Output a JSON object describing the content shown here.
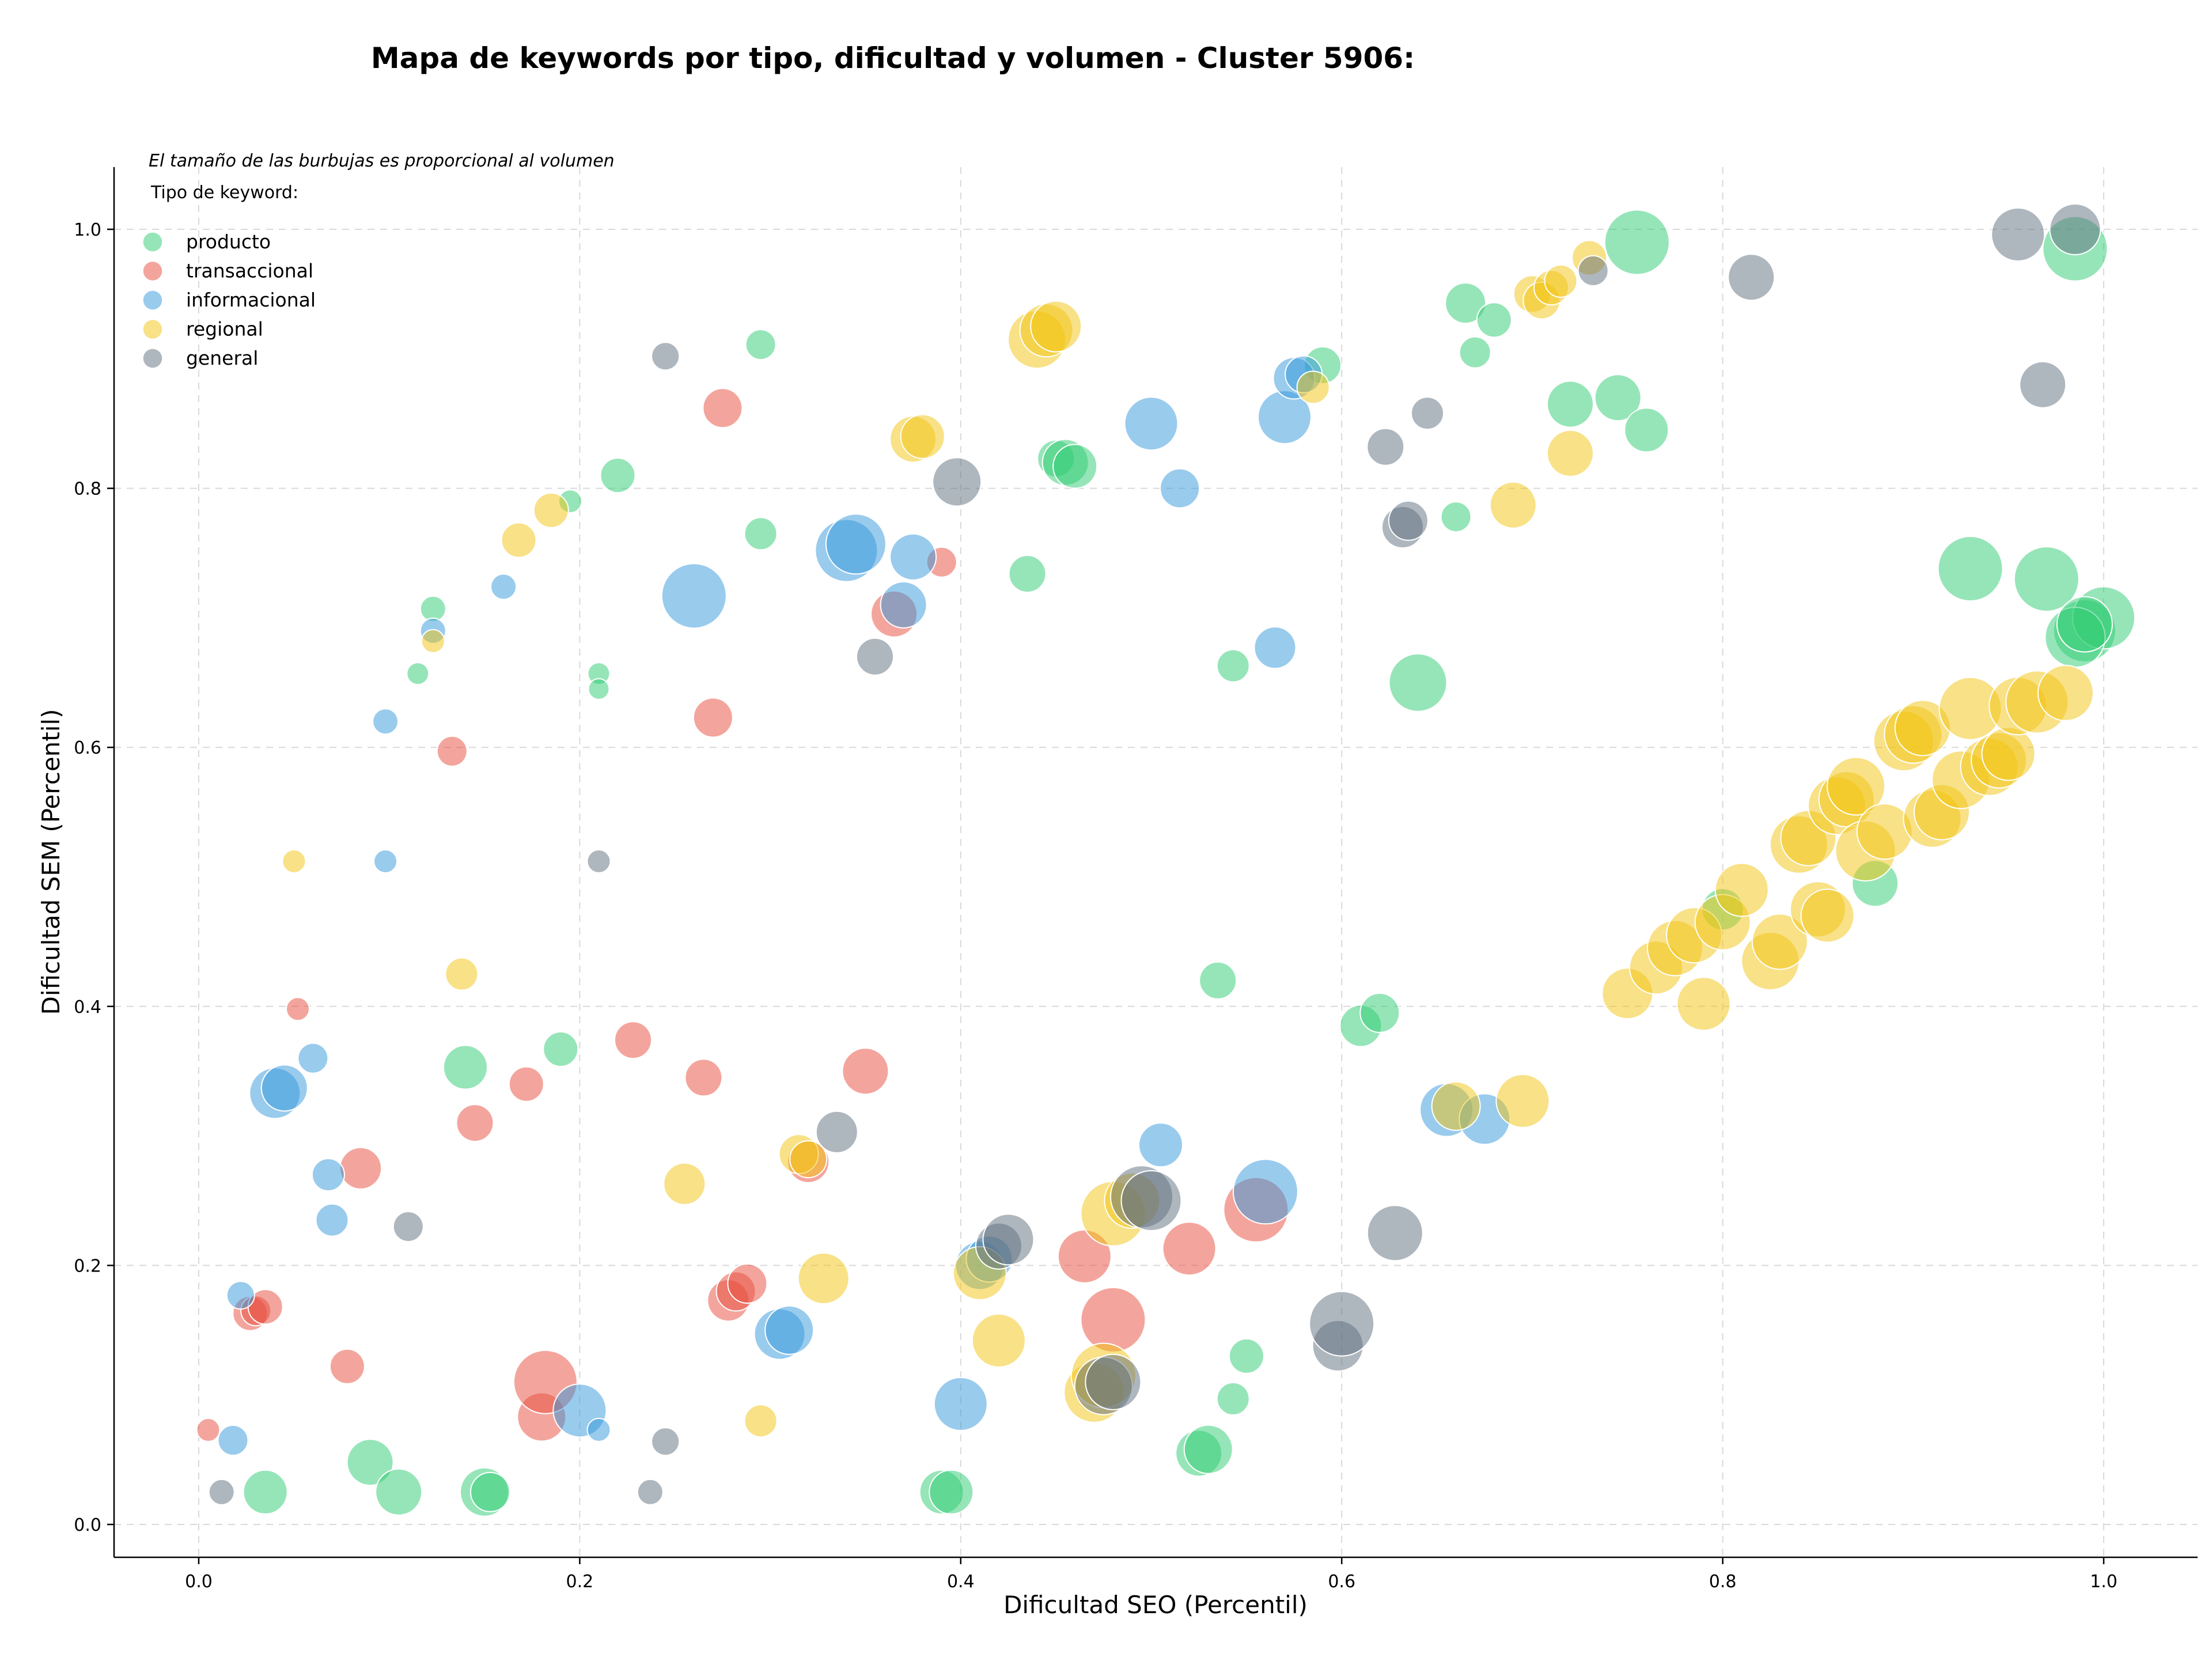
{
  "chart_data": {
    "type": "scatter",
    "title": "Mapa de keywords por tipo, dificultad y volumen - Cluster 5906:",
    "xlabel": "Dificultad SEO (Percentil)",
    "ylabel": "Dificultad SEM (Percentil)",
    "xlim": [
      -0.045,
      1.05
    ],
    "ylim": [
      -0.025,
      1.05
    ],
    "xticks": [
      "0.0",
      "0.2",
      "0.4",
      "0.6",
      "0.8",
      "1.0"
    ],
    "yticks": [
      "0.0",
      "0.2",
      "0.4",
      "0.6",
      "0.8",
      "1.0"
    ],
    "grid": true,
    "legend": {
      "placement": "top-left",
      "note": "El tamaño de las burbujas es proporcional al volumen",
      "title": "Tipo de keyword:"
    },
    "series": [
      {
        "name": "producto",
        "color": "#2ecc71",
        "points": [
          [
            0.035,
            0.025,
            38
          ],
          [
            0.09,
            0.048,
            40
          ],
          [
            0.105,
            0.025,
            40
          ],
          [
            0.15,
            0.025,
            42
          ],
          [
            0.153,
            0.025,
            34
          ],
          [
            0.14,
            0.353,
            38
          ],
          [
            0.19,
            0.367,
            30
          ],
          [
            0.123,
            0.707,
            22
          ],
          [
            0.115,
            0.657,
            19
          ],
          [
            0.21,
            0.657,
            19
          ],
          [
            0.21,
            0.645,
            18
          ],
          [
            0.195,
            0.79,
            20
          ],
          [
            0.22,
            0.81,
            30
          ],
          [
            0.295,
            0.765,
            28
          ],
          [
            0.295,
            0.911,
            26
          ],
          [
            0.39,
            0.025,
            38
          ],
          [
            0.395,
            0.025,
            38
          ],
          [
            0.435,
            0.734,
            32
          ],
          [
            0.45,
            0.823,
            32
          ],
          [
            0.455,
            0.82,
            40
          ],
          [
            0.46,
            0.817,
            38
          ],
          [
            0.525,
            0.055,
            40
          ],
          [
            0.53,
            0.058,
            42
          ],
          [
            0.543,
            0.097,
            28
          ],
          [
            0.55,
            0.13,
            30
          ],
          [
            0.535,
            0.42,
            32
          ],
          [
            0.543,
            0.663,
            28
          ],
          [
            0.61,
            0.385,
            36
          ],
          [
            0.62,
            0.395,
            34
          ],
          [
            0.64,
            0.65,
            50
          ],
          [
            0.66,
            0.778,
            26
          ],
          [
            0.665,
            0.943,
            35
          ],
          [
            0.67,
            0.905,
            27
          ],
          [
            0.68,
            0.93,
            30
          ],
          [
            0.72,
            0.865,
            40
          ],
          [
            0.745,
            0.87,
            40
          ],
          [
            0.76,
            0.845,
            38
          ],
          [
            0.755,
            0.99,
            56
          ],
          [
            0.59,
            0.895,
            32
          ],
          [
            0.8,
            0.475,
            36
          ],
          [
            0.88,
            0.495,
            40
          ],
          [
            0.93,
            0.738,
            56
          ],
          [
            0.97,
            0.73,
            56
          ],
          [
            0.985,
            0.985,
            56
          ],
          [
            0.99,
            0.69,
            54
          ],
          [
            1.0,
            0.7,
            54
          ],
          [
            0.985,
            0.685,
            52
          ],
          [
            0.99,
            0.695,
            48
          ]
        ]
      },
      {
        "name": "transaccional",
        "color": "#e74c3c",
        "points": [
          [
            0.005,
            0.073,
            20
          ],
          [
            0.027,
            0.163,
            30
          ],
          [
            0.03,
            0.165,
            26
          ],
          [
            0.035,
            0.168,
            30
          ],
          [
            0.052,
            0.398,
            20
          ],
          [
            0.078,
            0.122,
            30
          ],
          [
            0.085,
            0.275,
            36
          ],
          [
            0.133,
            0.597,
            26
          ],
          [
            0.145,
            0.31,
            32
          ],
          [
            0.172,
            0.34,
            30
          ],
          [
            0.18,
            0.083,
            42
          ],
          [
            0.182,
            0.11,
            55
          ],
          [
            0.228,
            0.374,
            32
          ],
          [
            0.265,
            0.345,
            32
          ],
          [
            0.27,
            0.623,
            34
          ],
          [
            0.275,
            0.862,
            34
          ],
          [
            0.278,
            0.173,
            36
          ],
          [
            0.282,
            0.18,
            34
          ],
          [
            0.288,
            0.186,
            34
          ],
          [
            0.35,
            0.35,
            40
          ],
          [
            0.32,
            0.28,
            36
          ],
          [
            0.365,
            0.703,
            40
          ],
          [
            0.39,
            0.743,
            26
          ],
          [
            0.465,
            0.207,
            46
          ],
          [
            0.48,
            0.158,
            56
          ],
          [
            0.52,
            0.213,
            46
          ],
          [
            0.555,
            0.243,
            56
          ]
        ]
      },
      {
        "name": "informacional",
        "color": "#3498db",
        "points": [
          [
            0.018,
            0.065,
            26
          ],
          [
            0.022,
            0.177,
            24
          ],
          [
            0.04,
            0.333,
            44
          ],
          [
            0.045,
            0.337,
            40
          ],
          [
            0.06,
            0.36,
            26
          ],
          [
            0.068,
            0.27,
            28
          ],
          [
            0.07,
            0.235,
            28
          ],
          [
            0.098,
            0.62,
            22
          ],
          [
            0.098,
            0.512,
            20
          ],
          [
            0.123,
            0.69,
            22
          ],
          [
            0.16,
            0.724,
            22
          ],
          [
            0.2,
            0.088,
            46
          ],
          [
            0.21,
            0.073,
            20
          ],
          [
            0.26,
            0.717,
            56
          ],
          [
            0.305,
            0.147,
            44
          ],
          [
            0.31,
            0.15,
            42
          ],
          [
            0.34,
            0.752,
            54
          ],
          [
            0.345,
            0.757,
            52
          ],
          [
            0.37,
            0.71,
            40
          ],
          [
            0.375,
            0.747,
            40
          ],
          [
            0.4,
            0.093,
            46
          ],
          [
            0.41,
            0.2,
            42
          ],
          [
            0.415,
            0.205,
            40
          ],
          [
            0.5,
            0.85,
            46
          ],
          [
            0.505,
            0.293,
            38
          ],
          [
            0.515,
            0.8,
            34
          ],
          [
            0.565,
            0.677,
            36
          ],
          [
            0.56,
            0.257,
            56
          ],
          [
            0.57,
            0.855,
            46
          ],
          [
            0.575,
            0.885,
            36
          ],
          [
            0.58,
            0.888,
            32
          ],
          [
            0.655,
            0.32,
            46
          ],
          [
            0.675,
            0.313,
            44
          ]
        ]
      },
      {
        "name": "regional",
        "color": "#f1c40f",
        "points": [
          [
            0.05,
            0.512,
            20
          ],
          [
            0.123,
            0.682,
            20
          ],
          [
            0.138,
            0.425,
            28
          ],
          [
            0.168,
            0.76,
            30
          ],
          [
            0.185,
            0.783,
            30
          ],
          [
            0.255,
            0.263,
            36
          ],
          [
            0.295,
            0.08,
            28
          ],
          [
            0.315,
            0.286,
            34
          ],
          [
            0.32,
            0.282,
            32
          ],
          [
            0.328,
            0.19,
            44
          ],
          [
            0.375,
            0.838,
            40
          ],
          [
            0.38,
            0.84,
            38
          ],
          [
            0.41,
            0.194,
            46
          ],
          [
            0.42,
            0.142,
            46
          ],
          [
            0.44,
            0.915,
            50
          ],
          [
            0.445,
            0.922,
            46
          ],
          [
            0.45,
            0.925,
            44
          ],
          [
            0.47,
            0.102,
            52
          ],
          [
            0.475,
            0.115,
            56
          ],
          [
            0.48,
            0.24,
            56
          ],
          [
            0.49,
            0.25,
            48
          ],
          [
            0.585,
            0.878,
            28
          ],
          [
            0.66,
            0.323,
            42
          ],
          [
            0.695,
            0.327,
            46
          ],
          [
            0.69,
            0.787,
            40
          ],
          [
            0.72,
            0.827,
            40
          ],
          [
            0.7,
            0.95,
            32
          ],
          [
            0.705,
            0.945,
            32
          ],
          [
            0.71,
            0.955,
            30
          ],
          [
            0.715,
            0.96,
            28
          ],
          [
            0.73,
            0.978,
            30
          ],
          [
            0.75,
            0.41,
            44
          ],
          [
            0.765,
            0.43,
            46
          ],
          [
            0.775,
            0.445,
            48
          ],
          [
            0.785,
            0.455,
            48
          ],
          [
            0.79,
            0.402,
            46
          ],
          [
            0.8,
            0.465,
            48
          ],
          [
            0.81,
            0.49,
            46
          ],
          [
            0.825,
            0.435,
            50
          ],
          [
            0.83,
            0.45,
            48
          ],
          [
            0.84,
            0.525,
            50
          ],
          [
            0.845,
            0.53,
            48
          ],
          [
            0.85,
            0.475,
            48
          ],
          [
            0.855,
            0.47,
            46
          ],
          [
            0.86,
            0.555,
            50
          ],
          [
            0.865,
            0.56,
            48
          ],
          [
            0.87,
            0.57,
            50
          ],
          [
            0.875,
            0.52,
            52
          ],
          [
            0.885,
            0.535,
            48
          ],
          [
            0.895,
            0.605,
            52
          ],
          [
            0.9,
            0.61,
            50
          ],
          [
            0.905,
            0.615,
            48
          ],
          [
            0.91,
            0.545,
            50
          ],
          [
            0.915,
            0.55,
            48
          ],
          [
            0.925,
            0.575,
            50
          ],
          [
            0.93,
            0.63,
            54
          ],
          [
            0.94,
            0.585,
            50
          ],
          [
            0.945,
            0.59,
            48
          ],
          [
            0.95,
            0.595,
            46
          ],
          [
            0.955,
            0.632,
            50
          ],
          [
            0.965,
            0.635,
            54
          ],
          [
            0.98,
            0.642,
            48
          ]
        ]
      },
      {
        "name": "general",
        "color": "#5d6d7e",
        "points": [
          [
            0.012,
            0.025,
            22
          ],
          [
            0.11,
            0.23,
            26
          ],
          [
            0.21,
            0.512,
            20
          ],
          [
            0.245,
            0.902,
            24
          ],
          [
            0.245,
            0.064,
            24
          ],
          [
            0.237,
            0.025,
            22
          ],
          [
            0.335,
            0.303,
            36
          ],
          [
            0.355,
            0.67,
            32
          ],
          [
            0.398,
            0.805,
            42
          ],
          [
            0.42,
            0.215,
            40
          ],
          [
            0.425,
            0.22,
            44
          ],
          [
            0.475,
            0.107,
            50
          ],
          [
            0.48,
            0.11,
            48
          ],
          [
            0.495,
            0.253,
            54
          ],
          [
            0.5,
            0.25,
            52
          ],
          [
            0.598,
            0.138,
            44
          ],
          [
            0.6,
            0.155,
            56
          ],
          [
            0.623,
            0.832,
            32
          ],
          [
            0.628,
            0.225,
            48
          ],
          [
            0.632,
            0.77,
            36
          ],
          [
            0.635,
            0.775,
            34
          ],
          [
            0.645,
            0.858,
            28
          ],
          [
            0.732,
            0.968,
            26
          ],
          [
            0.815,
            0.963,
            40
          ],
          [
            0.955,
            0.996,
            46
          ],
          [
            0.985,
            1.0,
            44
          ],
          [
            0.968,
            0.88,
            40
          ]
        ]
      }
    ]
  }
}
